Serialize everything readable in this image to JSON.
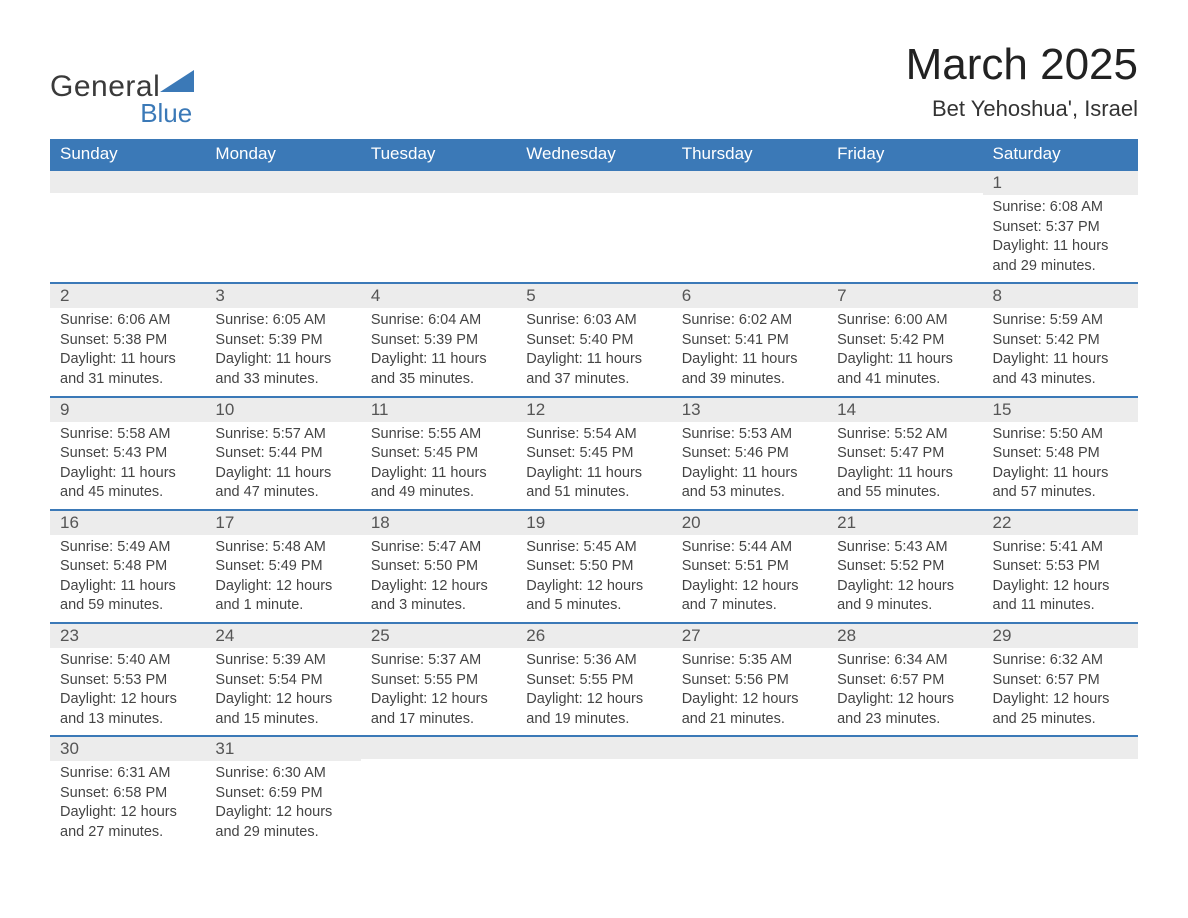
{
  "brand": {
    "name1": "General",
    "name2": "Blue",
    "accent_color": "#3b79b7"
  },
  "title": {
    "month": "March 2025",
    "location": "Bet Yehoshua', Israel",
    "month_fontsize": 44,
    "location_fontsize": 22
  },
  "theme": {
    "header_bg": "#3b79b7",
    "header_text": "#ffffff",
    "daynum_bg": "#ececec",
    "daynum_text": "#555555",
    "body_text": "#444444",
    "row_border": "#3b79b7",
    "page_bg": "#ffffff"
  },
  "layout": {
    "columns": 7,
    "rows": 6,
    "start_day_index": 6
  },
  "weekdays": [
    "Sunday",
    "Monday",
    "Tuesday",
    "Wednesday",
    "Thursday",
    "Friday",
    "Saturday"
  ],
  "days": [
    {
      "n": 1,
      "sunrise": "6:08 AM",
      "sunset": "5:37 PM",
      "dl_h": 11,
      "dl_m": 29
    },
    {
      "n": 2,
      "sunrise": "6:06 AM",
      "sunset": "5:38 PM",
      "dl_h": 11,
      "dl_m": 31
    },
    {
      "n": 3,
      "sunrise": "6:05 AM",
      "sunset": "5:39 PM",
      "dl_h": 11,
      "dl_m": 33
    },
    {
      "n": 4,
      "sunrise": "6:04 AM",
      "sunset": "5:39 PM",
      "dl_h": 11,
      "dl_m": 35
    },
    {
      "n": 5,
      "sunrise": "6:03 AM",
      "sunset": "5:40 PM",
      "dl_h": 11,
      "dl_m": 37
    },
    {
      "n": 6,
      "sunrise": "6:02 AM",
      "sunset": "5:41 PM",
      "dl_h": 11,
      "dl_m": 39
    },
    {
      "n": 7,
      "sunrise": "6:00 AM",
      "sunset": "5:42 PM",
      "dl_h": 11,
      "dl_m": 41
    },
    {
      "n": 8,
      "sunrise": "5:59 AM",
      "sunset": "5:42 PM",
      "dl_h": 11,
      "dl_m": 43
    },
    {
      "n": 9,
      "sunrise": "5:58 AM",
      "sunset": "5:43 PM",
      "dl_h": 11,
      "dl_m": 45
    },
    {
      "n": 10,
      "sunrise": "5:57 AM",
      "sunset": "5:44 PM",
      "dl_h": 11,
      "dl_m": 47
    },
    {
      "n": 11,
      "sunrise": "5:55 AM",
      "sunset": "5:45 PM",
      "dl_h": 11,
      "dl_m": 49
    },
    {
      "n": 12,
      "sunrise": "5:54 AM",
      "sunset": "5:45 PM",
      "dl_h": 11,
      "dl_m": 51
    },
    {
      "n": 13,
      "sunrise": "5:53 AM",
      "sunset": "5:46 PM",
      "dl_h": 11,
      "dl_m": 53
    },
    {
      "n": 14,
      "sunrise": "5:52 AM",
      "sunset": "5:47 PM",
      "dl_h": 11,
      "dl_m": 55
    },
    {
      "n": 15,
      "sunrise": "5:50 AM",
      "sunset": "5:48 PM",
      "dl_h": 11,
      "dl_m": 57
    },
    {
      "n": 16,
      "sunrise": "5:49 AM",
      "sunset": "5:48 PM",
      "dl_h": 11,
      "dl_m": 59
    },
    {
      "n": 17,
      "sunrise": "5:48 AM",
      "sunset": "5:49 PM",
      "dl_h": 12,
      "dl_m": 1
    },
    {
      "n": 18,
      "sunrise": "5:47 AM",
      "sunset": "5:50 PM",
      "dl_h": 12,
      "dl_m": 3
    },
    {
      "n": 19,
      "sunrise": "5:45 AM",
      "sunset": "5:50 PM",
      "dl_h": 12,
      "dl_m": 5
    },
    {
      "n": 20,
      "sunrise": "5:44 AM",
      "sunset": "5:51 PM",
      "dl_h": 12,
      "dl_m": 7
    },
    {
      "n": 21,
      "sunrise": "5:43 AM",
      "sunset": "5:52 PM",
      "dl_h": 12,
      "dl_m": 9
    },
    {
      "n": 22,
      "sunrise": "5:41 AM",
      "sunset": "5:53 PM",
      "dl_h": 12,
      "dl_m": 11
    },
    {
      "n": 23,
      "sunrise": "5:40 AM",
      "sunset": "5:53 PM",
      "dl_h": 12,
      "dl_m": 13
    },
    {
      "n": 24,
      "sunrise": "5:39 AM",
      "sunset": "5:54 PM",
      "dl_h": 12,
      "dl_m": 15
    },
    {
      "n": 25,
      "sunrise": "5:37 AM",
      "sunset": "5:55 PM",
      "dl_h": 12,
      "dl_m": 17
    },
    {
      "n": 26,
      "sunrise": "5:36 AM",
      "sunset": "5:55 PM",
      "dl_h": 12,
      "dl_m": 19
    },
    {
      "n": 27,
      "sunrise": "5:35 AM",
      "sunset": "5:56 PM",
      "dl_h": 12,
      "dl_m": 21
    },
    {
      "n": 28,
      "sunrise": "6:34 AM",
      "sunset": "6:57 PM",
      "dl_h": 12,
      "dl_m": 23
    },
    {
      "n": 29,
      "sunrise": "6:32 AM",
      "sunset": "6:57 PM",
      "dl_h": 12,
      "dl_m": 25
    },
    {
      "n": 30,
      "sunrise": "6:31 AM",
      "sunset": "6:58 PM",
      "dl_h": 12,
      "dl_m": 27
    },
    {
      "n": 31,
      "sunrise": "6:30 AM",
      "sunset": "6:59 PM",
      "dl_h": 12,
      "dl_m": 29
    }
  ],
  "labels": {
    "sunrise": "Sunrise",
    "sunset": "Sunset",
    "daylight": "Daylight",
    "hours": "hours",
    "and": "and",
    "minute_singular": "minute",
    "minute_plural": "minutes"
  }
}
